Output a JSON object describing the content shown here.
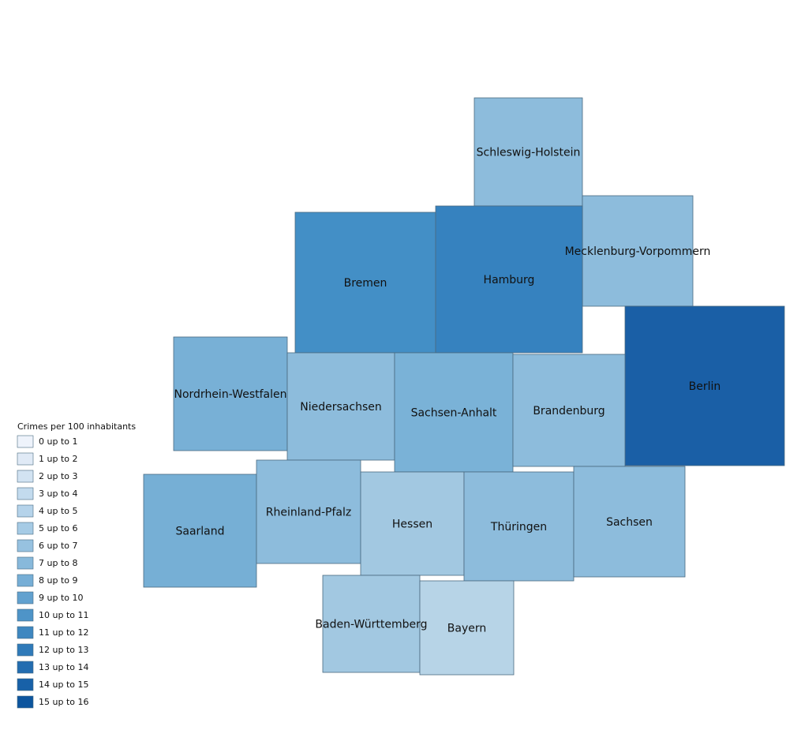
{
  "legend": {
    "title": "Crimes per 100 inhabitants",
    "items": [
      {
        "label": "0 up to 1",
        "color": "#eef3fb"
      },
      {
        "label": "1 up to 2",
        "color": "#e0eaf6"
      },
      {
        "label": "2 up to 3",
        "color": "#d2e3f2"
      },
      {
        "label": "3 up to 4",
        "color": "#c3dbee"
      },
      {
        "label": "4 up to 5",
        "color": "#b5d3ea"
      },
      {
        "label": "5 up to 6",
        "color": "#a6cbe5"
      },
      {
        "label": "6 up to 7",
        "color": "#97c2e0"
      },
      {
        "label": "7 up to 8",
        "color": "#88b9db"
      },
      {
        "label": "8 up to 9",
        "color": "#76aed6"
      },
      {
        "label": "9 up to 10",
        "color": "#62a1cf"
      },
      {
        "label": "10 up to 11",
        "color": "#4e94c8"
      },
      {
        "label": "11 up to 12",
        "color": "#3e87c0"
      },
      {
        "label": "12 up to 13",
        "color": "#2f7ab9"
      },
      {
        "label": "13 up to 14",
        "color": "#236db0"
      },
      {
        "label": "14 up to 15",
        "color": "#1861a8"
      },
      {
        "label": "15 up to 16",
        "color": "#0c559e"
      }
    ]
  },
  "regions": [
    {
      "name": "Schleswig-Holstein",
      "color": "#8dbcdc"
    },
    {
      "name": "Mecklenburg-Vorpommern",
      "color": "#8dbcdc"
    },
    {
      "name": "Bremen",
      "color": "#438fc6"
    },
    {
      "name": "Hamburg",
      "color": "#3682bf"
    },
    {
      "name": "Berlin",
      "color": "#1a5fa6"
    },
    {
      "name": "Nordrhein-Westfalen",
      "color": "#78b0d6"
    },
    {
      "name": "Niedersachsen",
      "color": "#8dbcdc"
    },
    {
      "name": "Sachsen-Anhalt",
      "color": "#7ab2d7"
    },
    {
      "name": "Brandenburg",
      "color": "#8dbcdc"
    },
    {
      "name": "Saarland",
      "color": "#76afd5"
    },
    {
      "name": "Rheinland-Pfalz",
      "color": "#8dbcdc"
    },
    {
      "name": "Hessen",
      "color": "#a2c8e1"
    },
    {
      "name": "Thüringen",
      "color": "#8dbcdc"
    },
    {
      "name": "Sachsen",
      "color": "#8dbcdc"
    },
    {
      "name": "Baden-Württemberg",
      "color": "#a2c8e1"
    },
    {
      "name": "Bayern",
      "color": "#b7d4e7"
    }
  ]
}
